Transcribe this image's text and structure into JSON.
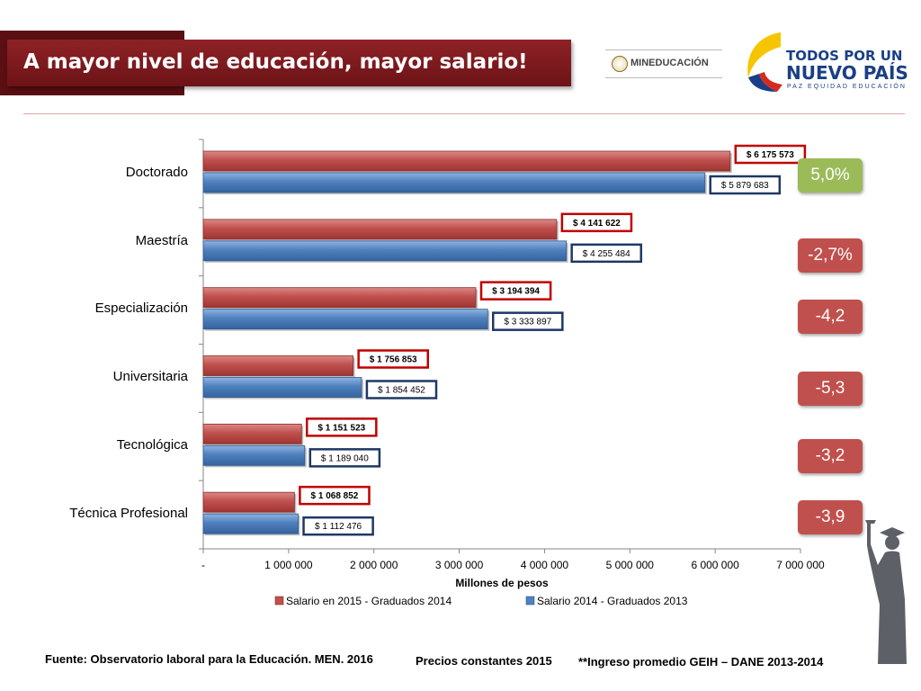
{
  "header": {
    "title": "A mayor nivel de educación, mayor salario!",
    "ministry_logo": "MINEDUCACIÓN",
    "country_logo": {
      "line1": "TODOS POR UN",
      "line2": "NUEVO PAÍS",
      "line3": "PAZ EQUIDAD EDUCACIÓN"
    }
  },
  "chart_data": {
    "type": "bar",
    "orientation": "horizontal",
    "categories": [
      "Doctorado",
      "Maestría",
      "Especialización",
      "Universitaria",
      "Tecnológica",
      "Técnica Profesional"
    ],
    "series": [
      {
        "name": "Salario en 2015 - Graduados 2014",
        "color": "#c0504d",
        "values": [
          6175573,
          4141622,
          3194394,
          1756853,
          1151523,
          1068852
        ],
        "labels": [
          "$ 6 175 573",
          "$ 4 141 622",
          "$ 3 194 394",
          "$ 1 756 853",
          "$ 1 151 523",
          "$ 1 068 852"
        ]
      },
      {
        "name": "Salario 2014 - Graduados 2013",
        "color": "#4f81bd",
        "values": [
          5879683,
          4255484,
          3333897,
          1854452,
          1189040,
          1112476
        ],
        "labels": [
          "$ 5 879 683",
          "$ 4 255 484",
          "$ 3 333 897",
          "$ 1 854 452",
          "$ 1 189 040",
          "$ 1 112 476"
        ]
      }
    ],
    "xlim": [
      0,
      7000000
    ],
    "xticks": [
      "-",
      "1 000 000",
      "2 000 000",
      "3 000 000",
      "4 000 000",
      "5 000 000",
      "6 000 000",
      "7 000 000"
    ],
    "xlabel": "Millones de pesos",
    "legend": "bottom",
    "changes": [
      {
        "label": "5,0%",
        "color": "#9bbb59"
      },
      {
        "label": "-2,7%",
        "color": "#c0504d"
      },
      {
        "label": "-4,2",
        "color": "#c0504d"
      },
      {
        "label": "-5,3",
        "color": "#c0504d"
      },
      {
        "label": "-3,2",
        "color": "#c0504d"
      },
      {
        "label": "-3,9",
        "color": "#c0504d"
      }
    ]
  },
  "footer": {
    "source": "Fuente: Observatorio laboral para la Educación. MEN. 2016",
    "prices": "Precios constantes  2015",
    "note": "**Ingreso promedio GEIH – DANE 2013-2014"
  }
}
